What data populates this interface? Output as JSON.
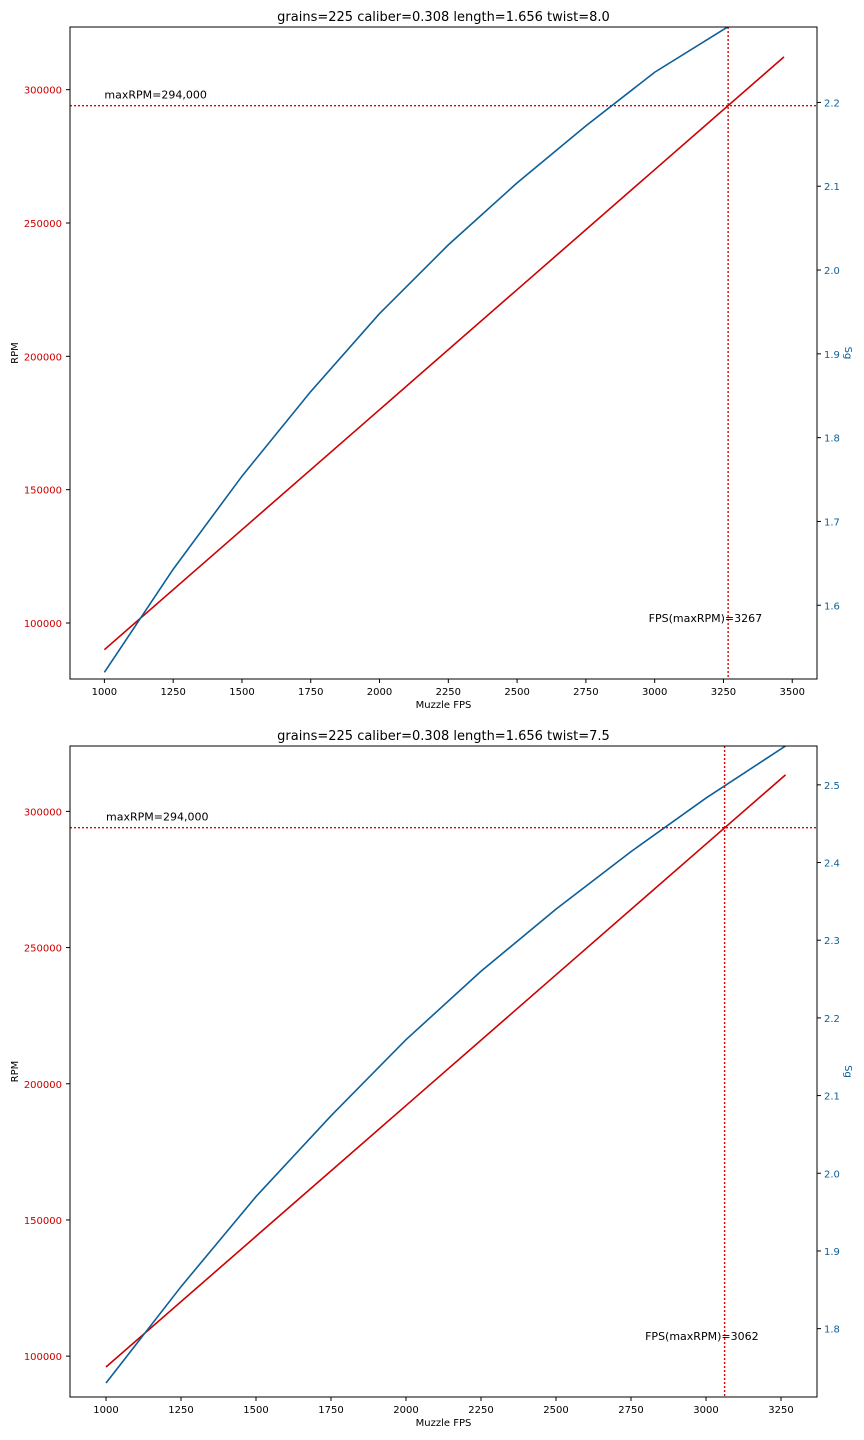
{
  "colors": {
    "rpm": "#cc0000",
    "sg": "#0c5f99",
    "axis": "#000000",
    "ref": "#dd0000"
  },
  "chart_data": [
    {
      "type": "line",
      "title": "grains=225 caliber=0.308 length=1.656 twist=8.0",
      "xlabel": "Muzzle FPS",
      "ylabel": "RPM",
      "y2label": "Sg",
      "xlim": [
        875,
        3590
      ],
      "ylim": [
        79000,
        323500
      ],
      "y2lim": [
        1.512,
        2.29
      ],
      "xticks": [
        1000,
        1250,
        1500,
        1750,
        2000,
        2250,
        2500,
        2750,
        3000,
        3250,
        3500
      ],
      "yticks": [
        100000,
        150000,
        200000,
        250000,
        300000
      ],
      "y2ticks": [
        1.6,
        1.7,
        1.8,
        1.9,
        2.0,
        2.1,
        2.2
      ],
      "grid": false,
      "series": [
        {
          "axis": "left",
          "x": [
            1000,
            1500,
            2000,
            2500,
            3000,
            3470
          ],
          "y": [
            90000,
            135000,
            180000,
            225000,
            270000,
            312300
          ]
        },
        {
          "axis": "right",
          "x": [
            1000,
            1250,
            1500,
            1750,
            2000,
            2250,
            2500,
            2750,
            3000,
            3250,
            3470
          ],
          "y": [
            1.52,
            1.643,
            1.754,
            1.855,
            1.948,
            2.03,
            2.104,
            2.172,
            2.236,
            2.287,
            2.33
          ]
        }
      ],
      "annotations": {
        "max_rpm_label": "maxRPM=294,000",
        "max_rpm_value": 294000,
        "fps_label": "FPS(maxRPM)=3267",
        "fps_value": 3267
      }
    },
    {
      "type": "line",
      "title": "grains=225 caliber=0.308 length=1.656 twist=7.5",
      "xlabel": "Muzzle FPS",
      "ylabel": "RPM",
      "y2label": "Sg",
      "xlim": [
        880,
        3370
      ],
      "ylim": [
        85000,
        324000
      ],
      "y2lim": [
        1.712,
        2.55
      ],
      "xticks": [
        1000,
        1250,
        1500,
        1750,
        2000,
        2250,
        2500,
        2750,
        3000,
        3250
      ],
      "yticks": [
        100000,
        150000,
        200000,
        250000,
        300000
      ],
      "y2ticks": [
        1.8,
        1.9,
        2.0,
        2.1,
        2.2,
        2.3,
        2.4,
        2.5
      ],
      "grid": false,
      "series": [
        {
          "axis": "left",
          "x": [
            1000,
            1500,
            2000,
            2500,
            3000,
            3265
          ],
          "y": [
            96000,
            144000,
            192000,
            240000,
            288000,
            313400
          ]
        },
        {
          "axis": "right",
          "x": [
            1000,
            1250,
            1500,
            1750,
            2000,
            2250,
            2500,
            2750,
            3000,
            3265
          ],
          "y": [
            1.73,
            1.854,
            1.97,
            2.074,
            2.172,
            2.26,
            2.34,
            2.414,
            2.483,
            2.55
          ]
        }
      ],
      "annotations": {
        "max_rpm_label": "maxRPM=294,000",
        "max_rpm_value": 294000,
        "fps_label": "FPS(maxRPM)=3062",
        "fps_value": 3062
      }
    }
  ]
}
